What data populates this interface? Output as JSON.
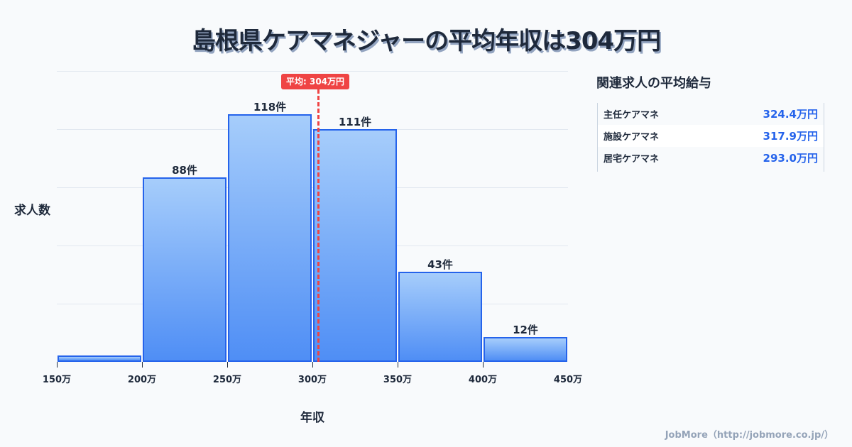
{
  "title": "島根県ケアマネジャーの平均年収は304万円",
  "chart": {
    "ylabel": "求人数",
    "xlabel": "年収",
    "mean_label": "平均: 304万円",
    "x_ticks": [
      "150万",
      "200万",
      "250万",
      "300万",
      "350万",
      "400万",
      "450万"
    ],
    "bars": [
      {
        "range": "150-200万",
        "value": 3,
        "label": ""
      },
      {
        "range": "200-250万",
        "value": 88,
        "label": "88件"
      },
      {
        "range": "250-300万",
        "value": 118,
        "label": "118件"
      },
      {
        "range": "300-350万",
        "value": 111,
        "label": "111件"
      },
      {
        "range": "350-400万",
        "value": 43,
        "label": "43件"
      },
      {
        "range": "400-450万",
        "value": 12,
        "label": "12件"
      }
    ]
  },
  "side_panel": {
    "title": "関連求人の平均給与",
    "rows": [
      {
        "name": "主任ケアマネ",
        "value": "324.4万円"
      },
      {
        "name": "施設ケアマネ",
        "value": "317.9万円"
      },
      {
        "name": "居宅ケアマネ",
        "value": "293.0万円"
      }
    ]
  },
  "footer": "JobMore（http://jobmore.co.jp/）",
  "colors": {
    "bar_border": "#2563eb",
    "bar_top": "#a6cdfb",
    "bar_bottom": "#4f8ef5",
    "mean_line": "#ef4444",
    "value_text": "#2563eb",
    "background": "#f8fafc"
  },
  "chart_data": {
    "type": "bar",
    "title": "島根県ケアマネジャーの平均年収は304万円",
    "categories": [
      "150-200万",
      "200-250万",
      "250-300万",
      "300-350万",
      "350-400万",
      "400-450万"
    ],
    "values": [
      3,
      88,
      118,
      111,
      43,
      12
    ],
    "xlabel": "年収",
    "ylabel": "求人数",
    "x_tick_labels": [
      "150万",
      "200万",
      "250万",
      "300万",
      "350万",
      "400万",
      "450万"
    ],
    "xlim": [
      150,
      450
    ],
    "ylim": [
      0,
      138
    ],
    "grid": true,
    "annotations": [
      {
        "type": "vline",
        "x": 304,
        "label": "平均: 304万円",
        "color": "#ef4444",
        "style": "dashed"
      }
    ],
    "side_table": [
      {
        "name": "主任ケアマネ",
        "value": 324.4,
        "unit": "万円"
      },
      {
        "name": "施設ケアマネ",
        "value": 317.9,
        "unit": "万円"
      },
      {
        "name": "居宅ケアマネ",
        "value": 293.0,
        "unit": "万円"
      }
    ]
  }
}
